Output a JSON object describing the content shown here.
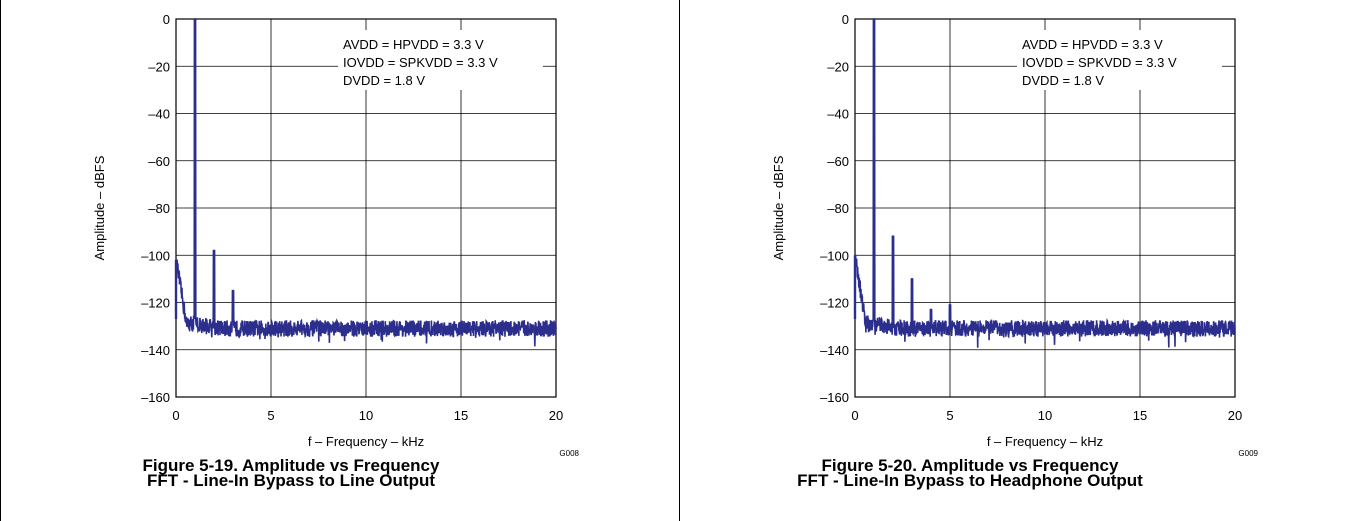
{
  "colors": {
    "trace": "#2b2e8c",
    "grid": "#000000"
  },
  "chart_data": [
    {
      "type": "line",
      "xlabel": "f – Frequency – kHz",
      "ylabel": "Amplitude – dBFS",
      "xlim": [
        0,
        20
      ],
      "ylim": [
        -160,
        0
      ],
      "x_ticks": [
        "0",
        "5",
        "10",
        "15",
        "20"
      ],
      "y_ticks": [
        "0",
        "–20",
        "–40",
        "–60",
        "–80",
        "–100",
        "–120",
        "–140",
        "–160"
      ],
      "grid": true,
      "annotations": [
        "AVDD = HPVDD = 3.3 V",
        "IOVDD = SPKVDD = 3.3 V",
        "DVDD = 1.8 V"
      ],
      "code": "G008",
      "caption_line1": "Figure 5-19. Amplitude vs Frequency",
      "caption_line2": "FFT - Line-In Bypass to Line Output",
      "noise_floor_db": -131,
      "peaks": [
        {
          "x": 0.0,
          "y": -102
        },
        {
          "x": 1.0,
          "y": 0
        },
        {
          "x": 2.0,
          "y": -98
        },
        {
          "x": 3.0,
          "y": -115
        }
      ]
    },
    {
      "type": "line",
      "xlabel": "f – Frequency – kHz",
      "ylabel": "Amplitude – dBFS",
      "xlim": [
        0,
        20
      ],
      "ylim": [
        -160,
        0
      ],
      "x_ticks": [
        "0",
        "5",
        "10",
        "15",
        "20"
      ],
      "y_ticks": [
        "0",
        "–20",
        "–40",
        "–60",
        "–80",
        "–100",
        "–120",
        "–140",
        "–160"
      ],
      "grid": true,
      "annotations": [
        "AVDD = HPVDD = 3.3 V",
        "IOVDD = SPKVDD = 3.3 V",
        "DVDD = 1.8 V"
      ],
      "code": "G009",
      "caption_line1": "Figure 5-20. Amplitude vs Frequency",
      "caption_line2": "FFT - Line-In Bypass to Headphone Output",
      "noise_floor_db": -131,
      "peaks": [
        {
          "x": 0.0,
          "y": -100
        },
        {
          "x": 1.0,
          "y": 0
        },
        {
          "x": 2.0,
          "y": -92
        },
        {
          "x": 3.0,
          "y": -110
        },
        {
          "x": 4.0,
          "y": -123
        },
        {
          "x": 5.0,
          "y": -121
        }
      ]
    }
  ]
}
